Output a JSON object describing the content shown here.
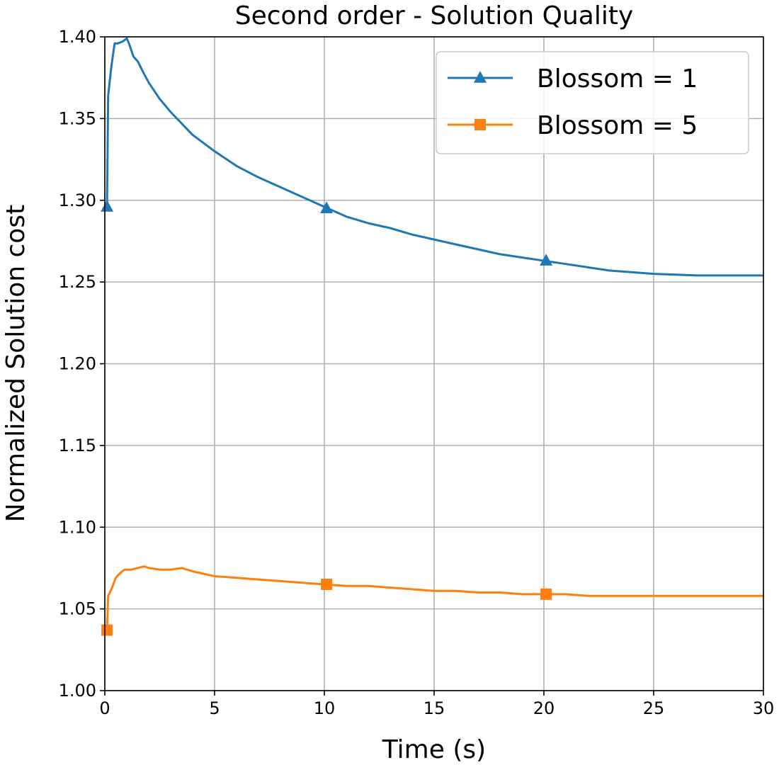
{
  "chart_data": {
    "type": "line",
    "title": "Second order - Solution Quality",
    "xlabel": "Time (s)",
    "ylabel": "Normalized Solution cost",
    "xlim": [
      0,
      30
    ],
    "ylim": [
      1.0,
      1.4
    ],
    "xticks": [
      "0",
      "5",
      "10",
      "15",
      "20",
      "25",
      "30"
    ],
    "yticks": [
      "1.00",
      "1.05",
      "1.10",
      "1.15",
      "1.20",
      "1.25",
      "1.30",
      "1.35",
      "1.40"
    ],
    "grid": true,
    "legend_position": "top-right",
    "series": [
      {
        "name": "Blossom = 1",
        "color": "#1f77b4",
        "marker": "triangle",
        "x": [
          0.1,
          0.15,
          0.3,
          0.45,
          0.6,
          0.8,
          1.0,
          1.1,
          1.3,
          1.5,
          1.8,
          2.0,
          2.5,
          3.0,
          3.5,
          4.0,
          5.0,
          6.0,
          7.0,
          8.0,
          9.0,
          10.0,
          11.0,
          12.0,
          13.0,
          14.0,
          15.0,
          16.0,
          17.0,
          18.0,
          19.0,
          20.0,
          21.0,
          22.0,
          23.0,
          24.0,
          25.0,
          26.0,
          27.0,
          28.0,
          29.0,
          30.0
        ],
        "y": [
          1.296,
          1.364,
          1.382,
          1.396,
          1.396,
          1.397,
          1.399,
          1.396,
          1.388,
          1.385,
          1.377,
          1.372,
          1.362,
          1.354,
          1.347,
          1.34,
          1.33,
          1.321,
          1.314,
          1.308,
          1.302,
          1.296,
          1.29,
          1.286,
          1.283,
          1.279,
          1.276,
          1.273,
          1.27,
          1.267,
          1.265,
          1.263,
          1.261,
          1.259,
          1.257,
          1.256,
          1.255,
          1.2545,
          1.254,
          1.254,
          1.254,
          1.254
        ],
        "marker_x": [
          0.1,
          10.1,
          20.1
        ],
        "marker_y": [
          1.296,
          1.295,
          1.263
        ]
      },
      {
        "name": "Blossom = 5",
        "color": "#ff7f0e",
        "marker": "square",
        "x": [
          0.1,
          0.15,
          0.3,
          0.5,
          0.7,
          0.9,
          1.2,
          1.5,
          1.8,
          2.0,
          2.5,
          3.0,
          3.5,
          4.0,
          5.0,
          6.0,
          7.0,
          8.0,
          9.0,
          10.0,
          11.0,
          12.0,
          13.0,
          14.0,
          15.0,
          16.0,
          17.0,
          18.0,
          19.0,
          20.0,
          21.0,
          22.0,
          23.0,
          24.0,
          25.0,
          26.0,
          27.0,
          28.0,
          29.0,
          30.0
        ],
        "y": [
          1.037,
          1.058,
          1.062,
          1.069,
          1.072,
          1.074,
          1.074,
          1.075,
          1.076,
          1.075,
          1.074,
          1.074,
          1.075,
          1.073,
          1.07,
          1.069,
          1.068,
          1.067,
          1.066,
          1.065,
          1.064,
          1.064,
          1.063,
          1.062,
          1.061,
          1.061,
          1.06,
          1.06,
          1.059,
          1.059,
          1.059,
          1.058,
          1.058,
          1.058,
          1.058,
          1.058,
          1.058,
          1.058,
          1.058,
          1.058
        ],
        "marker_x": [
          0.1,
          10.1,
          20.1
        ],
        "marker_y": [
          1.037,
          1.065,
          1.059
        ]
      }
    ]
  }
}
